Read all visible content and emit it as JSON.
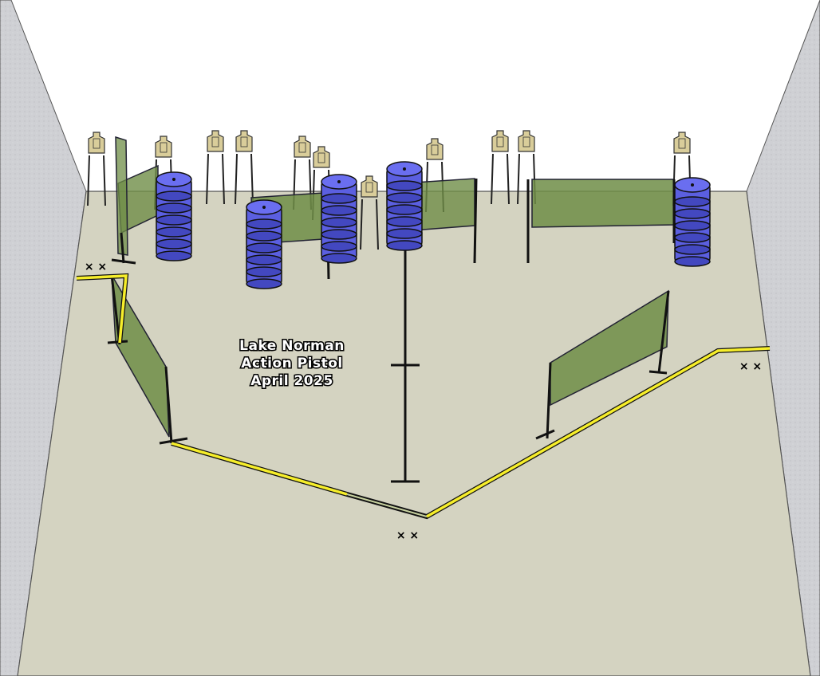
{
  "stage": {
    "club": "Lake Norman",
    "discipline": "Action Pistol",
    "date": "April 2025"
  },
  "markers": {
    "shooting_position": "× ×"
  },
  "colors": {
    "floor": "#d4d3c1",
    "wall": "#cfd0d4",
    "fault_line": "#f6ee2a",
    "barrel": "#5b5fe0",
    "wall_panel": "#6f8d47",
    "target": "#d9cd9a"
  }
}
